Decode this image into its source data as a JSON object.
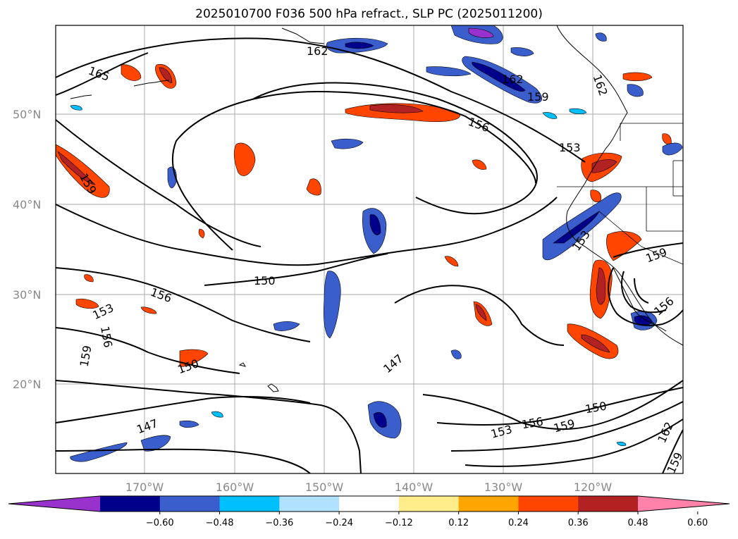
{
  "title": "2025010700 F036 500 hPa refract., SLP PC (2025011200)",
  "map": {
    "lat_labels": [
      "50°N",
      "40°N",
      "30°N",
      "20°N"
    ],
    "lon_labels": [
      "170°W",
      "160°W",
      "150°W",
      "140°W",
      "130°W",
      "120°W"
    ],
    "contour_labels": [
      "165",
      "162",
      "159",
      "156",
      "153",
      "150",
      "147",
      "162",
      "159",
      "153",
      "159",
      "156",
      "153",
      "156",
      "159",
      "150",
      "147",
      "150",
      "153",
      "156",
      "159",
      "162",
      "159",
      "156",
      "162"
    ]
  },
  "colorbar": {
    "ticks": [
      "−0.60",
      "−0.48",
      "−0.36",
      "−0.24",
      "−0.12",
      "0.12",
      "0.24",
      "0.36",
      "0.48",
      "0.60"
    ],
    "colors": [
      "#9932cc",
      "#00008b",
      "#3a5fcd",
      "#00bfff",
      "#b0e2ff",
      "#ffffff",
      "#ffec8b",
      "#ffa500",
      "#ff4500",
      "#b22222",
      "#ff82ab"
    ]
  }
}
